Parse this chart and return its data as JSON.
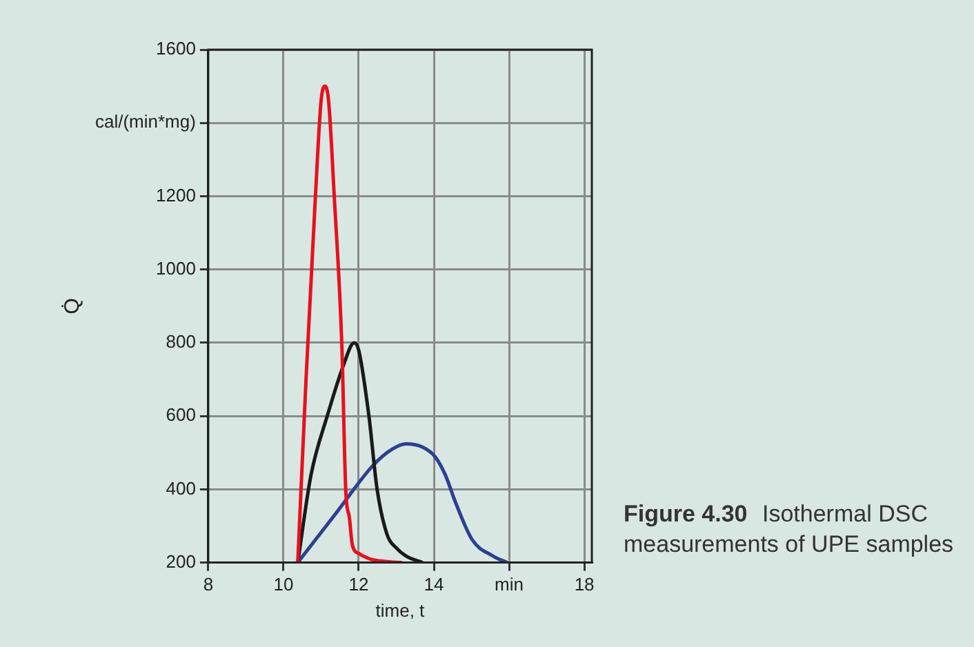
{
  "chart_data": {
    "type": "line",
    "xlabel": "time, t",
    "ylabel": "Q̇",
    "xlim": [
      8,
      18.2
    ],
    "xticks": [
      8,
      10,
      12,
      14,
      {
        "value": 16,
        "label": "min"
      },
      18
    ],
    "ylim": [
      200,
      1600
    ],
    "yticks": [
      200,
      400,
      600,
      800,
      1000,
      1200,
      {
        "value": 1400,
        "label": "cal/(min*mg)"
      },
      1600
    ],
    "grid": true,
    "legend": false,
    "marker": "none",
    "line_style": "solid",
    "annotations": [
      "Figure 4.30",
      "Isothermal DSC measurements of UPE samples"
    ],
    "series": [
      {
        "color": "#e8101e",
        "x": [
          10.38,
          10.6,
          10.85,
          11.0,
          11.1,
          11.2,
          11.35,
          11.55,
          11.66,
          11.75,
          11.83,
          12.0,
          12.3,
          12.7,
          13.15
        ],
        "values": [
          200,
          700,
          1200,
          1460,
          1500,
          1460,
          1200,
          800,
          389,
          325,
          249,
          225,
          210,
          203,
          200
        ]
      },
      {
        "color": "#1a1a1a",
        "x": [
          10.38,
          10.73,
          11.17,
          11.6,
          11.88,
          12.0,
          12.27,
          12.49,
          12.76,
          13.0,
          13.26,
          13.7
        ],
        "values": [
          200,
          438,
          602,
          740,
          800,
          780,
          602,
          400,
          275,
          240,
          218,
          200
        ]
      },
      {
        "color": "#2e3f92",
        "x": [
          10.38,
          11.4,
          12.38,
          12.9,
          13.26,
          13.7,
          14.03,
          14.3,
          14.58,
          15.02,
          15.57,
          15.95
        ],
        "values": [
          200,
          335,
          465,
          510,
          524,
          515,
          489,
          440,
          363,
          262,
          218,
          200
        ]
      }
    ]
  }
}
